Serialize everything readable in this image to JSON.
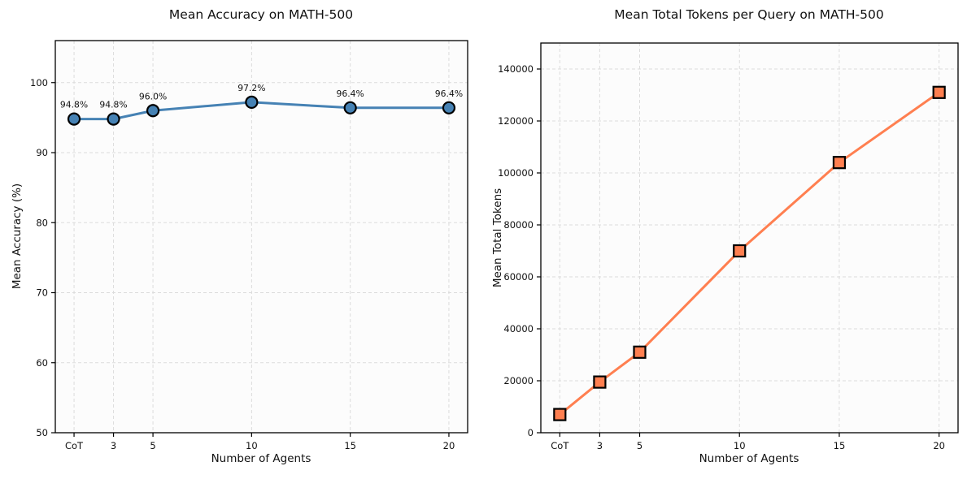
{
  "figure": {
    "background": "#ffffff"
  },
  "chart_data": [
    {
      "type": "line",
      "title": "Mean Accuracy on MATH-500",
      "xlabel": "Number of Agents",
      "ylabel": "Mean Accuracy (%)",
      "categories": [
        "CoT",
        "3",
        "5",
        "10",
        "15",
        "20"
      ],
      "x": [
        1,
        3,
        5,
        10,
        15,
        20
      ],
      "values": [
        94.8,
        94.8,
        96.0,
        97.2,
        96.4,
        96.4
      ],
      "point_labels": [
        "94.8%",
        "94.8%",
        "96.0%",
        "97.2%",
        "96.4%",
        "96.4%"
      ],
      "xlim": [
        0.05,
        20.95
      ],
      "ylim": [
        50,
        106
      ],
      "yticks": [
        50,
        60,
        70,
        80,
        90,
        100
      ],
      "grid": true,
      "legend": "none",
      "line_color": "#4682B4",
      "marker": "circle",
      "marker_fill": "#4682B4",
      "marker_edge": "#000000",
      "grid_color": "#dcdcdc",
      "axes_color": "#000000"
    },
    {
      "type": "line",
      "title": "Mean Total Tokens per Query on MATH-500",
      "xlabel": "Number of Agents",
      "ylabel": "Mean Total Tokens",
      "categories": [
        "CoT",
        "3",
        "5",
        "10",
        "15",
        "20"
      ],
      "x": [
        1,
        3,
        5,
        10,
        15,
        20
      ],
      "values": [
        7000,
        19500,
        31000,
        70000,
        104000,
        131000
      ],
      "point_labels": [],
      "xlim": [
        0.05,
        20.95
      ],
      "ylim": [
        0,
        150000
      ],
      "yticks": [
        0,
        20000,
        40000,
        60000,
        80000,
        100000,
        120000,
        140000
      ],
      "grid": true,
      "legend": "none",
      "line_color": "#FF7F50",
      "marker": "square",
      "marker_fill": "#FF7F50",
      "marker_edge": "#000000",
      "grid_color": "#dcdcdc",
      "axes_color": "#000000"
    }
  ]
}
